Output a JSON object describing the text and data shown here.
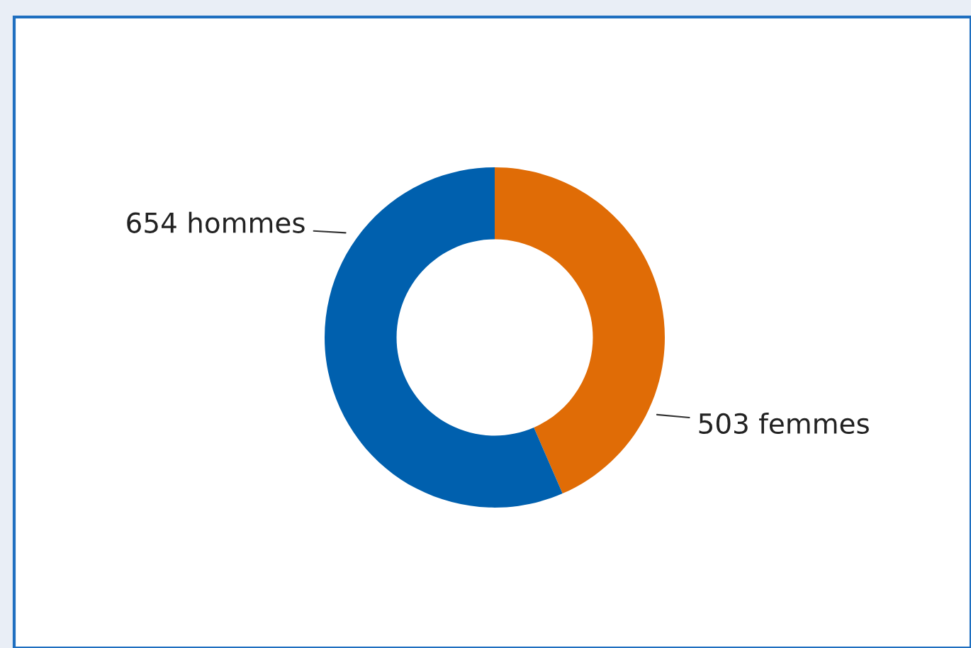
{
  "chart_data": {
    "type": "donut",
    "categories": [
      "503 femmes",
      "654 hommes"
    ],
    "values": [
      503,
      654
    ],
    "colors": [
      "#e06c06",
      "#0060ae"
    ]
  }
}
